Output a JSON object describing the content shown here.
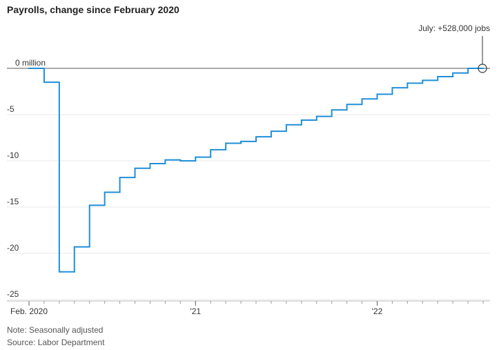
{
  "chart_data": {
    "type": "step",
    "title": "Payrolls, change since February 2020",
    "annotation": "July: +528,000 jobs",
    "note": "Note: Seasonally adjusted",
    "source": "Source: Labor Department",
    "categories": [
      "Feb. 2020",
      null,
      null,
      null,
      null,
      null,
      null,
      null,
      null,
      null,
      null,
      "'21",
      null,
      null,
      null,
      null,
      null,
      null,
      null,
      null,
      null,
      null,
      null,
      "'22",
      null,
      null,
      null,
      null,
      null,
      null
    ],
    "values": [
      0,
      -1.5,
      -22.0,
      -19.3,
      -14.8,
      -13.4,
      -11.8,
      -10.8,
      -10.3,
      -9.9,
      -10.0,
      -9.6,
      -8.8,
      -8.1,
      -7.9,
      -7.4,
      -6.8,
      -6.1,
      -5.6,
      -5.2,
      -4.5,
      -3.9,
      -3.3,
      -2.8,
      -2.1,
      -1.6,
      -1.3,
      -0.9,
      -0.5,
      0.0
    ],
    "color": "#1f8fd8",
    "ylim": [
      -25,
      2.5
    ],
    "yticks": [
      {
        "value": 0,
        "label": "0 million"
      },
      -5,
      -10,
      -15,
      -20,
      -25
    ],
    "grid": true
  }
}
